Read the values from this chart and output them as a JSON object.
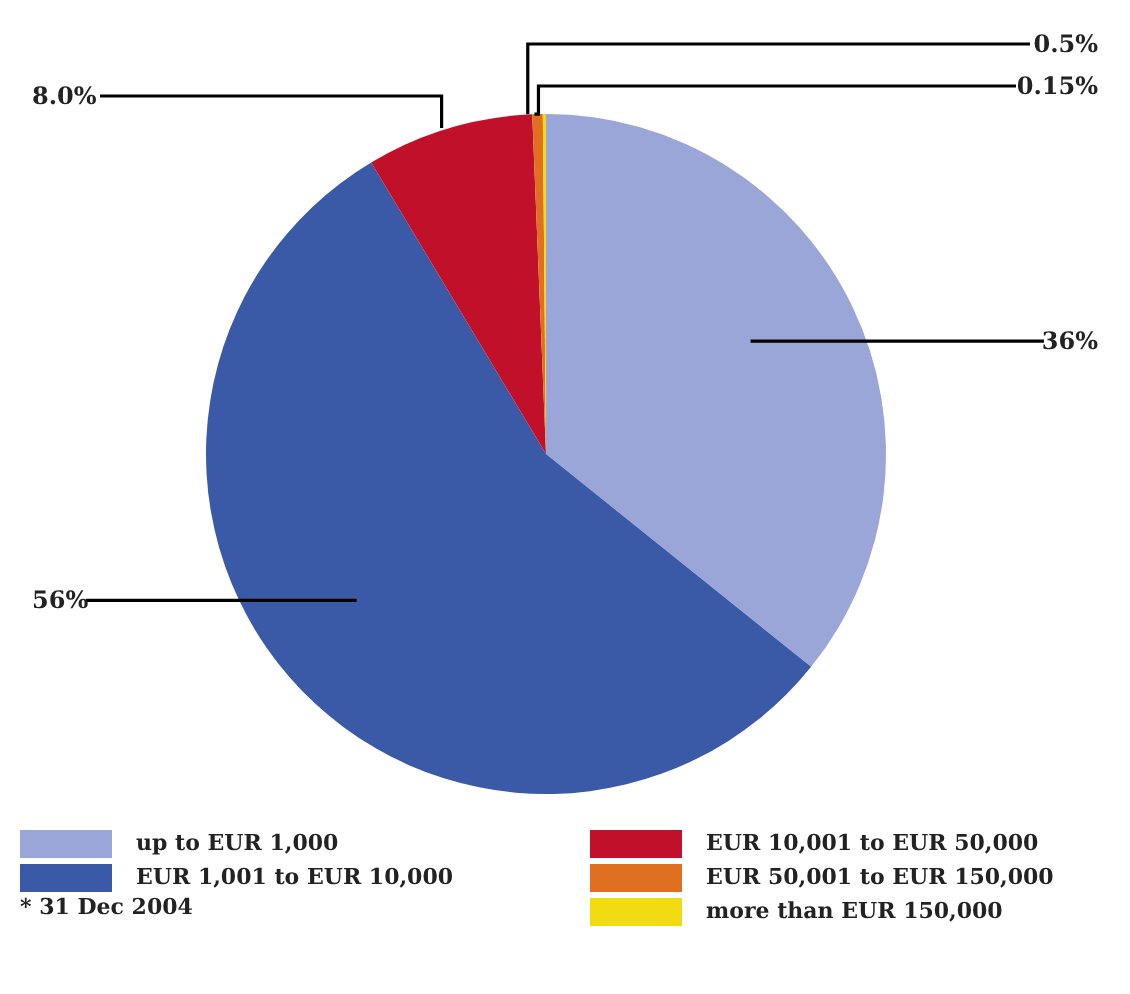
{
  "chart_data": {
    "type": "pie",
    "categories": [
      "up to EUR 1,000",
      "EUR 1,001 to EUR 10,000",
      "EUR 10,001 to EUR 50,000",
      "EUR 50,001 to EUR 150,000",
      "more than EUR 150,000"
    ],
    "values": [
      36,
      56,
      8.0,
      0.5,
      0.15
    ],
    "value_labels": [
      "36%",
      "56%",
      "8.0%",
      "0.5%",
      "0.15%"
    ],
    "colors": [
      "#9aa6d8",
      "#3a5aa8",
      "#c0102a",
      "#e07020",
      "#f0dc10"
    ],
    "legend": "bottom",
    "annotations": [
      "* 31 Dec 2004"
    ]
  }
}
